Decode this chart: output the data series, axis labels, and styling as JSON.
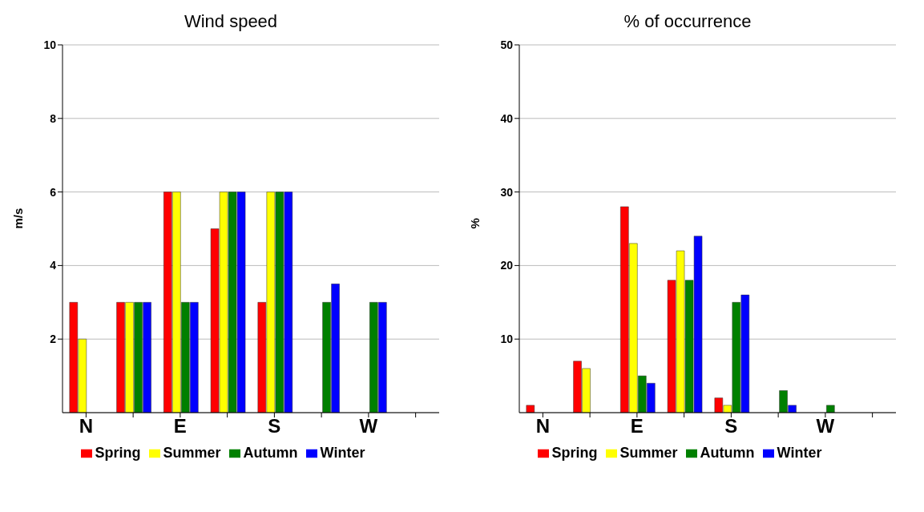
{
  "chart_data": [
    {
      "type": "bar",
      "title": "Wind speed",
      "ylabel": "m/s",
      "categories": [
        "N",
        null,
        "E",
        null,
        "S",
        null,
        "W",
        null
      ],
      "ylim": [
        0,
        10
      ],
      "yticks": [
        2,
        4,
        6,
        8,
        10
      ],
      "grid": "y",
      "legend": "bottom",
      "series": [
        {
          "name": "Spring",
          "color": "#ff0000",
          "values": [
            3,
            3,
            6,
            5,
            3,
            0,
            0,
            0
          ]
        },
        {
          "name": "Summer",
          "color": "#ffff00",
          "values": [
            2,
            3,
            6,
            6,
            6,
            0,
            0,
            0
          ]
        },
        {
          "name": "Autumn",
          "color": "#008000",
          "values": [
            0,
            3,
            3,
            6,
            6,
            3,
            3,
            0
          ]
        },
        {
          "name": "Winter",
          "color": "#0000ff",
          "values": [
            0,
            3,
            3,
            6,
            6,
            3.5,
            3,
            0
          ]
        }
      ]
    },
    {
      "type": "bar",
      "title": "% of occurrence",
      "ylabel": "%",
      "categories": [
        "N",
        null,
        "E",
        null,
        "S",
        null,
        "W",
        null
      ],
      "ylim": [
        0,
        50
      ],
      "yticks": [
        10,
        20,
        30,
        40,
        50
      ],
      "grid": "y",
      "legend": "bottom",
      "series": [
        {
          "name": "Spring",
          "color": "#ff0000",
          "values": [
            1,
            7,
            28,
            18,
            2,
            0,
            0,
            0
          ]
        },
        {
          "name": "Summer",
          "color": "#ffff00",
          "values": [
            0,
            6,
            23,
            22,
            1,
            0,
            0,
            0
          ]
        },
        {
          "name": "Autumn",
          "color": "#008000",
          "values": [
            0,
            0,
            5,
            18,
            15,
            3,
            1,
            0
          ]
        },
        {
          "name": "Winter",
          "color": "#0000ff",
          "values": [
            0,
            0,
            4,
            24,
            16,
            1,
            0,
            0
          ]
        }
      ]
    }
  ]
}
